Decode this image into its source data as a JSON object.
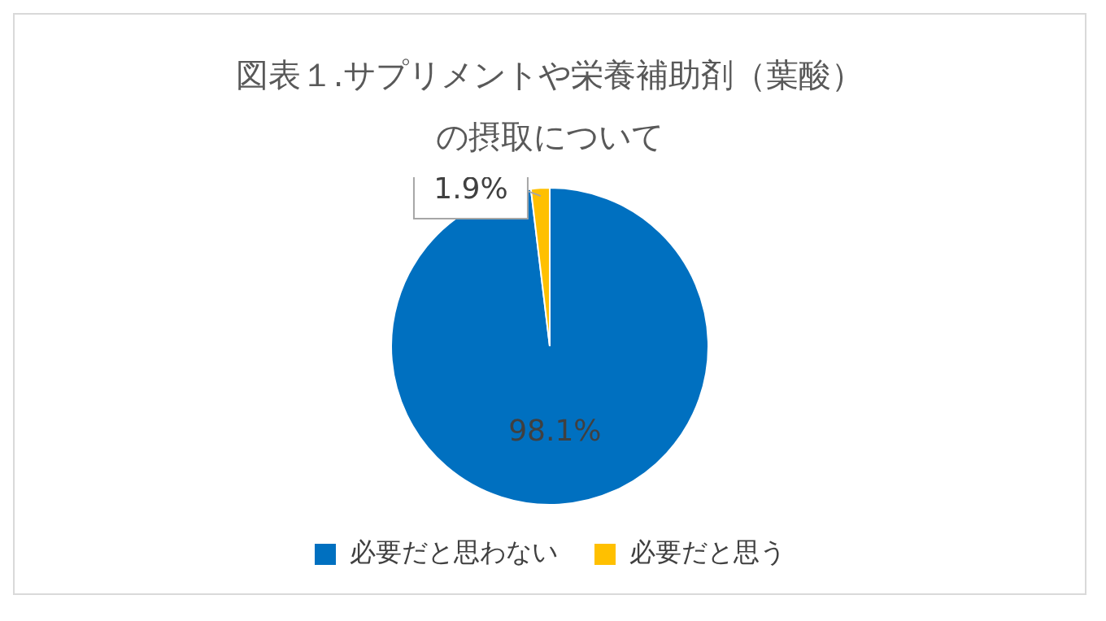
{
  "chart_data": {
    "type": "pie",
    "title": "図表１.サプリメントや栄養補助剤（葉酸）の摂取について",
    "categories": [
      "必要だと思わない",
      "必要だと思う"
    ],
    "values": [
      98.1,
      1.9
    ],
    "colors": [
      "#0070c0",
      "#ffc000"
    ],
    "value_labels": [
      "98.1%",
      "1.9%"
    ],
    "legend": "bottom"
  }
}
